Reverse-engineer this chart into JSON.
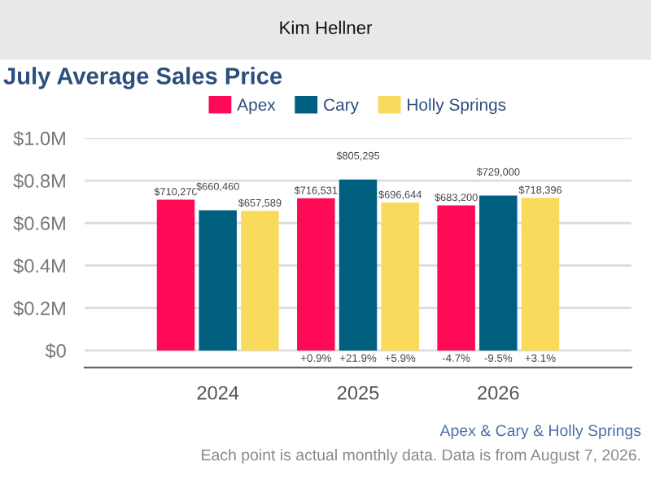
{
  "chart_data": {
    "type": "bar",
    "title": "July Average Sales Price",
    "subtitle": "Kim Hellner",
    "categories": [
      "2024",
      "2025",
      "2026"
    ],
    "series": [
      {
        "name": "Apex",
        "color": "#ff0a57",
        "values": [
          710270,
          716531,
          683200
        ],
        "value_labels": [
          "$710,270",
          "$716,531",
          "$683,200"
        ]
      },
      {
        "name": "Cary",
        "color": "#005f7f",
        "values": [
          660460,
          805295,
          729000
        ],
        "value_labels": [
          "$660,460",
          "$805,295",
          "$729,000"
        ]
      },
      {
        "name": "Holly Springs",
        "color": "#f8db5c",
        "values": [
          657589,
          696644,
          718396
        ],
        "value_labels": [
          "$657,589",
          "$696,644",
          "$718,396"
        ]
      }
    ],
    "ylim": [
      -80000,
      1000000
    ],
    "yticks": [
      {
        "value": 0,
        "label": "$0"
      },
      {
        "value": 200000,
        "label": "$0.2M"
      },
      {
        "value": 400000,
        "label": "$0.4M"
      },
      {
        "value": 600000,
        "label": "$0.6M"
      },
      {
        "value": 800000,
        "label": "$0.8M"
      },
      {
        "value": 1000000,
        "label": "$1.0M"
      }
    ],
    "grid": "y",
    "legend": "top",
    "annotations": [
      "+0.9%",
      "+21.9%",
      "+5.9%",
      "-4.7%",
      "-9.5%",
      "+3.1%",
      "Apex & Cary & Holly Springs",
      "Each point is actual monthly data. Data is from August 7, 2026."
    ]
  }
}
